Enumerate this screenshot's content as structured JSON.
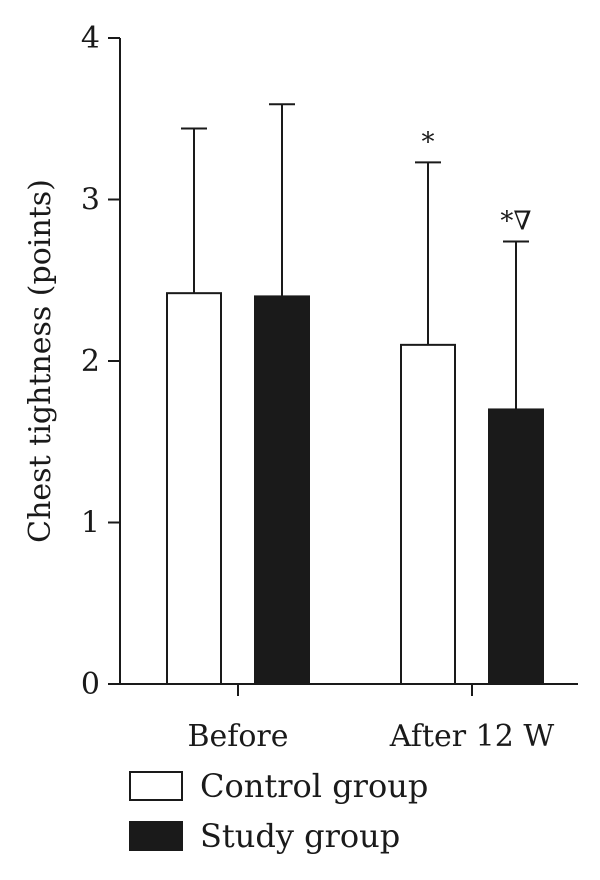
{
  "chart_data": {
    "type": "bar",
    "ylabel": "Chest tightness (points)",
    "ylim": [
      0,
      4
    ],
    "yticks": [
      0,
      1,
      2,
      3,
      4
    ],
    "categories": [
      "Before",
      "After 12 W"
    ],
    "series": [
      {
        "name": "Control group",
        "color": "#ffffff",
        "values": [
          2.42,
          2.1
        ],
        "error": [
          1.02,
          1.13
        ],
        "annotations": [
          "",
          "*"
        ]
      },
      {
        "name": "Study group",
        "color": "#1a1a1a",
        "values": [
          2.4,
          1.7
        ],
        "error": [
          1.19,
          1.04
        ],
        "annotations": [
          "",
          "*∇"
        ]
      }
    ],
    "legend": {
      "position": "bottom-left"
    }
  }
}
